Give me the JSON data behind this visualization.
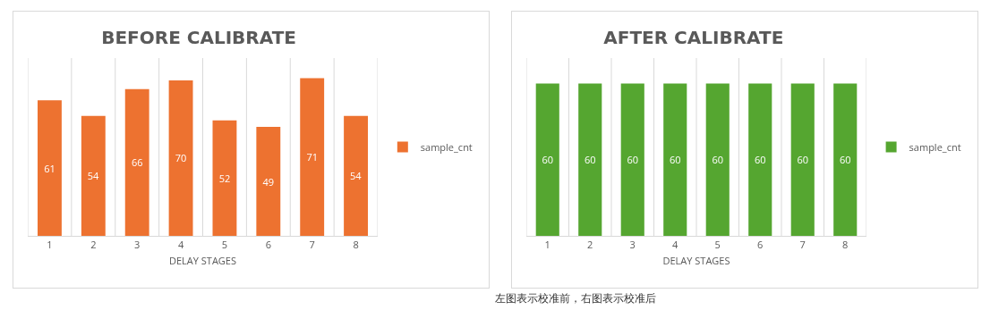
{
  "chart_data": [
    {
      "type": "bar",
      "title": "BEFORE CALIBRATE",
      "xlabel": "DELAY STAGES",
      "categories": [
        "1",
        "2",
        "3",
        "4",
        "5",
        "6",
        "7",
        "8"
      ],
      "series": [
        {
          "name": "sample_cnt",
          "color": "#ed7230",
          "values": [
            61,
            54,
            66,
            70,
            52,
            49,
            71,
            54
          ]
        }
      ],
      "ylim": [
        0,
        80
      ],
      "tick_labels": "x",
      "data_labels": true,
      "grid": "x",
      "legend": "right"
    },
    {
      "type": "bar",
      "title": "AFTER CALIBRATE",
      "xlabel": "DELAY STAGES",
      "categories": [
        "1",
        "2",
        "3",
        "4",
        "5",
        "6",
        "7",
        "8"
      ],
      "series": [
        {
          "name": "sample_cnt",
          "color": "#55a630",
          "values": [
            60,
            60,
            60,
            60,
            60,
            60,
            60,
            60
          ]
        }
      ],
      "ylim": [
        0,
        70
      ],
      "tick_labels": "x",
      "data_labels": true,
      "grid": "x",
      "legend": "right",
      "annotations": [
        "左图表示校准前，右图表示校准后"
      ]
    }
  ]
}
